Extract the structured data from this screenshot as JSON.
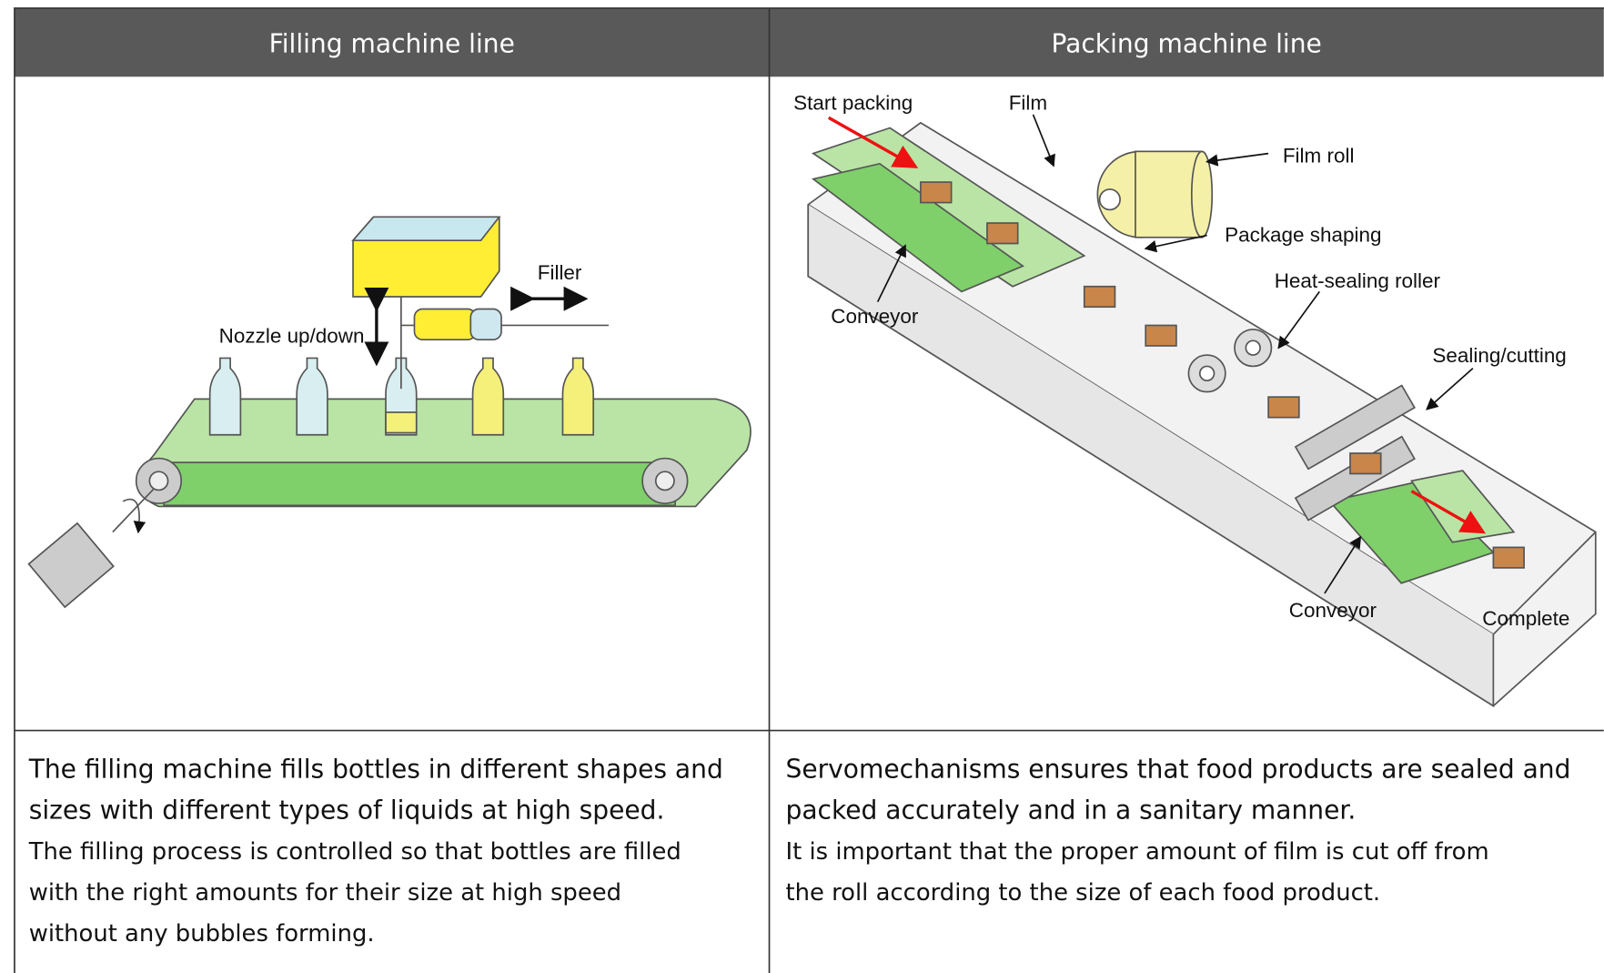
{
  "table": {
    "headers": [
      "Filling machine line",
      "Packing machine line"
    ],
    "diagrams": [
      {
        "labels": [
          "Filler",
          "Nozzle up/down"
        ]
      },
      {
        "labels": [
          "Start packing",
          "Film",
          "Film roll",
          "Package shaping",
          "Heat-sealing roller",
          "Sealing/cutting",
          "Conveyor",
          "Conveyor",
          "Complete"
        ]
      }
    ],
    "descriptions": [
      {
        "paragraphs": [
          {
            "lines": [
              "The filling machine fills bottles in different shapes and",
              "sizes with different types of liquids at high speed."
            ]
          },
          {
            "lines": [
              "The filling process is controlled so that bottles are filled",
              "with the right amounts for their size at high speed",
              "without any bubbles forming."
            ]
          }
        ]
      },
      {
        "paragraphs": [
          {
            "lines": [
              "Servomechanisms ensures that food products are sealed and",
              "packed accurately and in a sanitary manner."
            ]
          },
          {
            "lines": [
              "It is important that the proper amount of film is cut off from",
              "the roll according to the size of each food product."
            ]
          }
        ]
      }
    ]
  }
}
